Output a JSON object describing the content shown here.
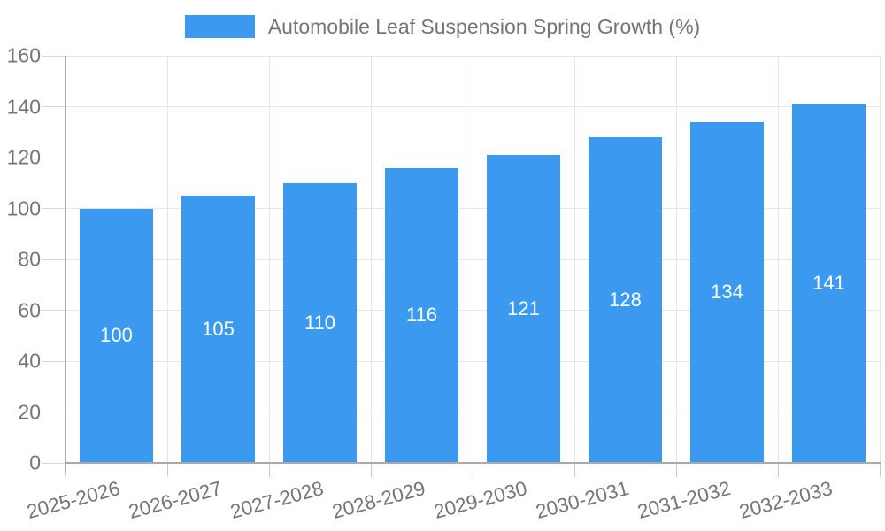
{
  "chart_data": {
    "type": "bar",
    "title": "Automobile Leaf Suspension Spring Growth (%)",
    "categories": [
      "2025-2026",
      "2026-2027",
      "2027-2028",
      "2028-2029",
      "2029-2030",
      "2030-2031",
      "2031-2032",
      "2032-2033"
    ],
    "values": [
      100,
      105,
      110,
      116,
      121,
      128,
      134,
      141
    ],
    "xlabel": "",
    "ylabel": "",
    "ylim": [
      0,
      160
    ],
    "yticks": [
      0,
      20,
      40,
      60,
      80,
      100,
      120,
      140,
      160
    ],
    "grid": true,
    "legend_position": "top-center",
    "bar_label_position": "center",
    "colors": {
      "bar": "#3B99F0",
      "bar_label": "#FFFFFF",
      "grid": "#E6E6E6",
      "axis": "#ABABAB",
      "tick": "#CFCFCF",
      "text": "#757575"
    }
  }
}
